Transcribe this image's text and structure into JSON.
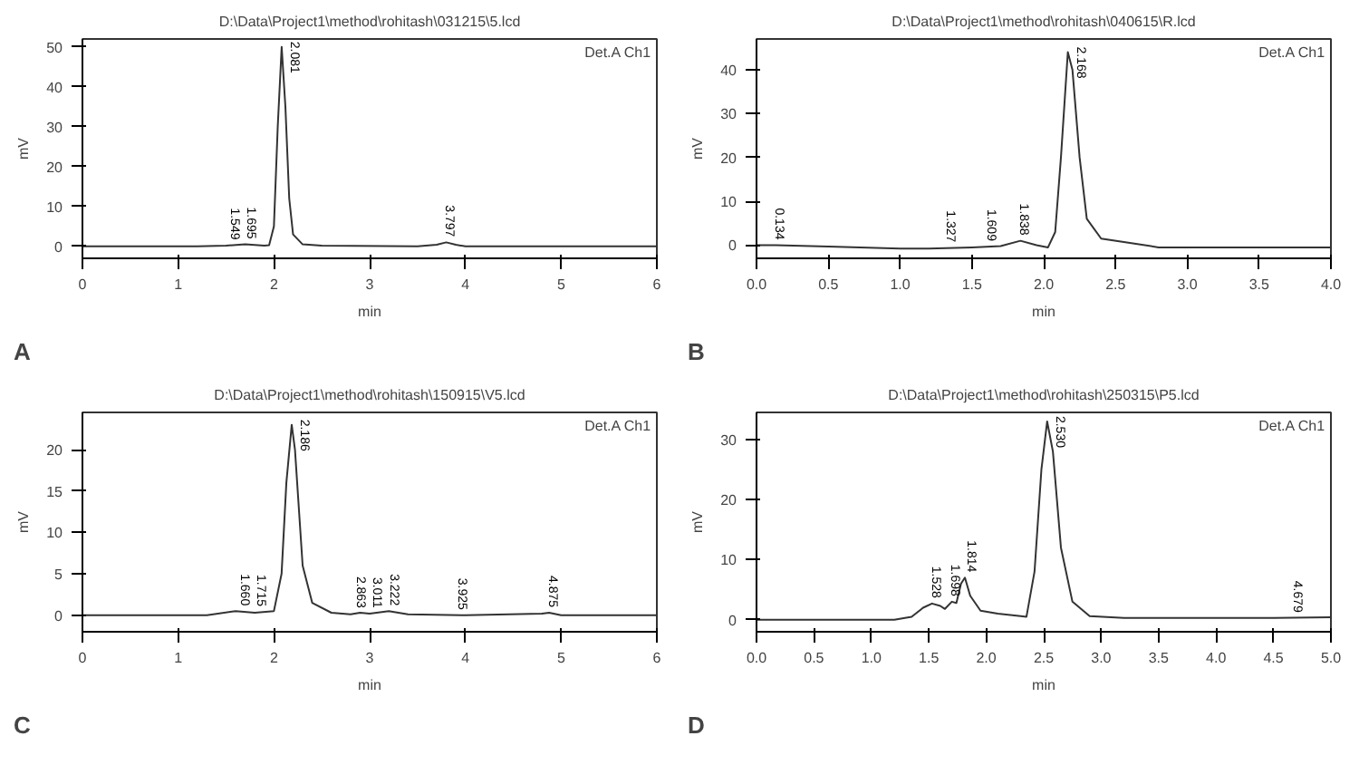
{
  "chart_data": [
    {
      "type": "line",
      "title": "D:\\Data\\Project1\\method\\rohitash\\031215\\5.lcd",
      "xlabel": "min",
      "ylabel": "mV",
      "x": [
        0,
        1.2,
        1.5,
        1.7,
        1.9,
        1.95,
        2.0,
        2.04,
        2.081,
        2.12,
        2.16,
        2.2,
        2.3,
        2.5,
        3.5,
        3.7,
        3.8,
        3.9,
        4.0,
        6
      ],
      "series": [
        {
          "color": "#333333",
          "values": [
            0,
            0,
            0.2,
            0.5,
            0.2,
            0.3,
            5,
            30,
            50,
            35,
            12,
            3,
            0.5,
            0.2,
            0,
            0.4,
            1,
            0.4,
            0,
            0
          ]
        }
      ],
      "xlim": [
        0,
        6
      ],
      "ylim": [
        -3,
        52
      ],
      "xticks": [
        0,
        1,
        2,
        3,
        4,
        5,
        6
      ],
      "yticks": [
        0,
        10,
        20,
        30,
        40,
        50
      ],
      "annotations": [
        "A",
        "Det.A Ch1",
        {
          "text": "1.549",
          "x": 1.549,
          "y": 0.3
        },
        {
          "text": "1.695",
          "x": 1.695,
          "y": 0.5
        },
        {
          "text": "2.081",
          "x": 2.081,
          "y": 50
        },
        {
          "text": "3.797",
          "x": 3.797,
          "y": 1
        }
      ]
    },
    {
      "type": "line",
      "title": "D:\\Data\\Project1\\method\\rohitash\\040615\\R.lcd",
      "xlabel": "min",
      "ylabel": "mV",
      "x": [
        0,
        0.134,
        0.5,
        1.0,
        1.2,
        1.5,
        1.7,
        1.838,
        1.95,
        2.03,
        2.08,
        2.12,
        2.168,
        2.2,
        2.25,
        2.3,
        2.4,
        2.6,
        2.8,
        3.0,
        4.0
      ],
      "series": [
        {
          "color": "#333333",
          "values": [
            0,
            0,
            -0.3,
            -0.8,
            -0.8,
            -0.5,
            -0.2,
            1,
            0,
            -0.5,
            3,
            20,
            44,
            40,
            20,
            6,
            1.5,
            0.5,
            -0.5,
            -0.5,
            -0.5
          ]
        }
      ],
      "xlim": [
        0,
        4
      ],
      "ylim": [
        -3,
        47
      ],
      "xticks": [
        {
          "value": 0,
          "label": "0.0"
        },
        0.5,
        {
          "value": 1,
          "label": "1.0"
        },
        1.5,
        {
          "value": 2,
          "label": "2.0"
        },
        2.5,
        {
          "value": 3,
          "label": "3.0"
        },
        3.5,
        {
          "value": 4,
          "label": "4.0"
        }
      ],
      "yticks": [
        0,
        10,
        20,
        30,
        40
      ],
      "annotations": [
        "B",
        "Det.A Ch1",
        {
          "text": "0.134",
          "x": 0.134,
          "y": 0
        },
        {
          "text": "1.327",
          "x": 1.327,
          "y": -0.6
        },
        {
          "text": "1.609",
          "x": 1.609,
          "y": -0.3
        },
        {
          "text": "1.838",
          "x": 1.838,
          "y": 1
        },
        {
          "text": "2.168",
          "x": 2.168,
          "y": 44
        }
      ]
    },
    {
      "type": "line",
      "title": "D:\\Data\\Project1\\method\\rohitash\\150915\\V5.lcd",
      "xlabel": "min",
      "ylabel": "mV",
      "x": [
        0,
        1.3,
        1.6,
        1.8,
        2.0,
        2.08,
        2.13,
        2.186,
        2.22,
        2.3,
        2.4,
        2.6,
        2.8,
        2.9,
        3.0,
        3.2,
        3.4,
        4.0,
        4.8,
        4.875,
        5.0,
        6
      ],
      "series": [
        {
          "color": "#333333",
          "values": [
            0,
            0,
            0.5,
            0.3,
            0.5,
            5,
            16,
            23,
            20,
            6,
            1.5,
            0.3,
            0.1,
            0.3,
            0.2,
            0.5,
            0.1,
            0,
            0.2,
            0.3,
            0,
            0
          ]
        }
      ],
      "xlim": [
        0,
        6
      ],
      "ylim": [
        -2,
        24.5
      ],
      "xticks": [
        0,
        1,
        2,
        3,
        4,
        5,
        6
      ],
      "yticks": [
        0,
        5,
        10,
        15,
        20
      ],
      "annotations": [
        "C",
        "Det.A Ch1",
        {
          "text": "1.660",
          "x": 1.66,
          "y": 0.5
        },
        {
          "text": "1.715",
          "x": 1.715,
          "y": 0.4
        },
        {
          "text": "2.186",
          "x": 2.186,
          "y": 23
        },
        {
          "text": "2.863",
          "x": 2.863,
          "y": 0.2
        },
        {
          "text": "3.011",
          "x": 3.011,
          "y": 0.2
        },
        {
          "text": "3.222",
          "x": 3.222,
          "y": 0.5
        },
        {
          "text": "3.925",
          "x": 3.925,
          "y": 0
        },
        {
          "text": "4.875",
          "x": 4.875,
          "y": 0.3
        }
      ]
    },
    {
      "type": "line",
      "title": "D:\\Data\\Project1\\method\\rohitash\\250315\\P5.lcd",
      "xlabel": "min",
      "ylabel": "mV",
      "x": [
        0,
        1.2,
        1.35,
        1.45,
        1.528,
        1.6,
        1.64,
        1.7,
        1.74,
        1.78,
        1.814,
        1.86,
        1.95,
        2.1,
        2.3,
        2.35,
        2.42,
        2.48,
        2.53,
        2.58,
        2.65,
        2.75,
        2.9,
        3.2,
        4.5,
        5
      ],
      "series": [
        {
          "color": "#333333",
          "values": [
            0,
            0,
            0.5,
            2,
            2.7,
            2.3,
            1.8,
            3,
            2.8,
            6,
            7,
            4,
            1.5,
            1,
            0.6,
            0.5,
            8,
            25,
            33,
            28,
            12,
            3,
            0.6,
            0.3,
            0.3,
            0.4
          ]
        }
      ],
      "xlim": [
        0,
        5
      ],
      "ylim": [
        -2,
        34.5
      ],
      "xticks": [
        {
          "value": 0,
          "label": "0.0"
        },
        0.5,
        {
          "value": 1,
          "label": "1.0"
        },
        1.5,
        {
          "value": 2,
          "label": "2.0"
        },
        2.5,
        {
          "value": 3,
          "label": "3.0"
        },
        3.5,
        {
          "value": 4,
          "label": "4.0"
        },
        4.5,
        {
          "value": 5,
          "label": "5.0"
        }
      ],
      "yticks": [
        0,
        10,
        20,
        30
      ],
      "annotations": [
        "D",
        "Det.A Ch1",
        {
          "text": "1.528",
          "x": 1.528,
          "y": 2.7
        },
        {
          "text": "1.698",
          "x": 1.698,
          "y": 3
        },
        {
          "text": "1.814",
          "x": 1.814,
          "y": 7
        },
        {
          "text": "2.530",
          "x": 2.53,
          "y": 33
        },
        {
          "text": "4.679",
          "x": 4.679,
          "y": 0.3
        }
      ]
    }
  ]
}
